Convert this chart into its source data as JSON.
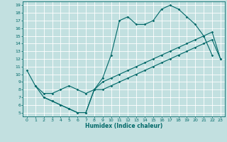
{
  "xlabel": "Humidex (Indice chaleur)",
  "bg_color": "#c2e0e0",
  "grid_color": "#ffffff",
  "line_color": "#006868",
  "xlim": [
    -0.5,
    23.5
  ],
  "ylim": [
    4.5,
    19.5
  ],
  "xticks": [
    0,
    1,
    2,
    3,
    4,
    5,
    6,
    7,
    8,
    9,
    10,
    11,
    12,
    13,
    14,
    15,
    16,
    17,
    18,
    19,
    20,
    21,
    22,
    23
  ],
  "yticks": [
    5,
    6,
    7,
    8,
    9,
    10,
    11,
    12,
    13,
    14,
    15,
    16,
    17,
    18,
    19
  ],
  "line1_x": [
    0,
    1,
    2,
    3,
    4,
    5,
    6,
    7,
    8,
    9,
    10,
    11,
    12,
    13,
    14,
    15,
    16,
    17,
    18,
    19,
    20,
    21,
    22
  ],
  "line1_y": [
    10.5,
    8.5,
    7.0,
    6.5,
    6.0,
    5.5,
    5.0,
    5.0,
    8.0,
    9.5,
    12.5,
    17.0,
    17.5,
    16.5,
    16.5,
    17.0,
    18.5,
    19.0,
    18.5,
    17.5,
    16.5,
    15.0,
    12.5
  ],
  "line2_x": [
    1,
    2,
    3,
    4,
    5,
    6,
    7,
    8,
    9,
    10,
    11,
    12,
    13,
    14,
    15,
    16,
    17,
    18,
    19,
    20,
    21,
    22,
    23
  ],
  "line2_y": [
    8.5,
    7.5,
    7.5,
    8.0,
    8.5,
    8.0,
    7.5,
    8.0,
    9.0,
    9.5,
    10.0,
    10.5,
    11.0,
    11.5,
    12.0,
    12.5,
    13.0,
    13.5,
    14.0,
    14.5,
    15.0,
    15.5,
    12.0
  ],
  "line3_x": [
    2,
    3,
    4,
    5,
    6,
    7,
    8,
    9,
    10,
    11,
    12,
    13,
    14,
    15,
    16,
    17,
    18,
    19,
    20,
    21,
    22,
    23
  ],
  "line3_y": [
    7.0,
    6.5,
    6.0,
    5.5,
    5.0,
    5.0,
    8.0,
    8.0,
    8.5,
    9.0,
    9.5,
    10.0,
    10.5,
    11.0,
    11.5,
    12.0,
    12.5,
    13.0,
    13.5,
    14.0,
    14.5,
    12.0
  ]
}
